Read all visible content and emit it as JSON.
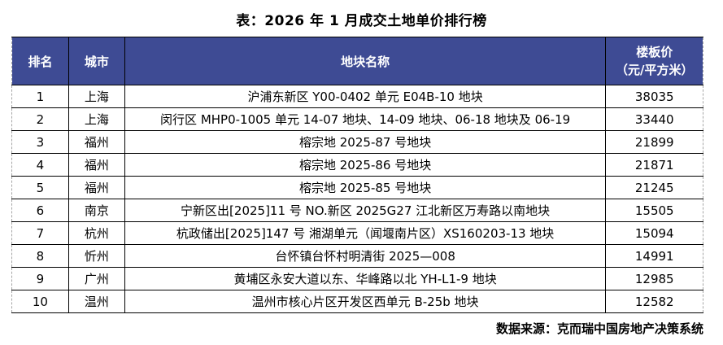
{
  "title": "表：2026 年 1 月成交土地单价排行榜",
  "source_note": "数据来源：克而瑞中国房地产决策系统",
  "colors": {
    "header_bg": "#3e4b94",
    "header_text": "#ffffff",
    "row_text": "#000000",
    "border": "#000000",
    "outer_dashed_edge": "#a6a6a6"
  },
  "table": {
    "columns": [
      {
        "key": "rank",
        "label": "排名"
      },
      {
        "key": "city",
        "label": "城市"
      },
      {
        "key": "name",
        "label": "地块名称"
      },
      {
        "key": "price",
        "label_line1": "楼板价",
        "label_line2": "（元/平方米）"
      }
    ],
    "rows": [
      {
        "rank": "1",
        "city": "上海",
        "name": "沪浦东新区 Y00-0402 单元 E04B-10 地块",
        "price": "38035"
      },
      {
        "rank": "2",
        "city": "上海",
        "name": "闵行区 MHP0-1005 单元 14-07 地块、14-09 地块、06-18 地块及 06-19",
        "price": "33440"
      },
      {
        "rank": "3",
        "city": "福州",
        "name": "榕宗地 2025-87 号地块",
        "price": "21899"
      },
      {
        "rank": "4",
        "city": "福州",
        "name": "榕宗地 2025-86 号地块",
        "price": "21871"
      },
      {
        "rank": "5",
        "city": "福州",
        "name": "榕宗地 2025-85 号地块",
        "price": "21245"
      },
      {
        "rank": "6",
        "city": "南京",
        "name": "宁新区出[2025]11 号 NO.新区 2025G27 江北新区万寿路以南地块",
        "price": "15505"
      },
      {
        "rank": "7",
        "city": "杭州",
        "name": "杭政储出[2025]147 号  湘湖单元（闻堰南片区）XS160203-13 地块",
        "price": "15094"
      },
      {
        "rank": "8",
        "city": "忻州",
        "name": "台怀镇台怀村明清街 2025—008",
        "price": "14991"
      },
      {
        "rank": "9",
        "city": "广州",
        "name": "黄埔区永安大道以东、华峰路以北 YH-L1-9 地块",
        "price": "12985"
      },
      {
        "rank": "10",
        "city": "温州",
        "name": "温州市核心片区开发区西单元 B-25b 地块",
        "price": "12582"
      }
    ]
  },
  "chart_data": {
    "type": "table",
    "title": "表：2026 年 1 月成交土地单价排行榜",
    "columns": [
      "排名",
      "城市",
      "地块名称",
      "楼板价（元/平方米）"
    ],
    "categories": [
      "上海",
      "上海",
      "福州",
      "福州",
      "福州",
      "南京",
      "杭州",
      "忻州",
      "广州",
      "温州"
    ],
    "plot_names": [
      "沪浦东新区 Y00-0402 单元 E04B-10 地块",
      "闵行区 MHP0-1005 单元 14-07 地块、14-09 地块、06-18 地块及 06-19",
      "榕宗地 2025-87 号地块",
      "榕宗地 2025-86 号地块",
      "榕宗地 2025-85 号地块",
      "宁新区出[2025]11 号 NO.新区 2025G27 江北新区万寿路以南地块",
      "杭政储出[2025]147 号  湘湖单元（闻堰南片区）XS160203-13 地块",
      "台怀镇台怀村明清街 2025—008",
      "黄埔区永安大道以东、华峰路以北 YH-L1-9 地块",
      "温州市核心片区开发区西单元 B-25b 地块"
    ],
    "values": [
      38035,
      33440,
      21899,
      21871,
      21245,
      15505,
      15094,
      14991,
      12985,
      12582
    ],
    "ylabel": "楼板价（元/平方米）",
    "source": "数据来源：克而瑞中国房地产决策系统"
  }
}
